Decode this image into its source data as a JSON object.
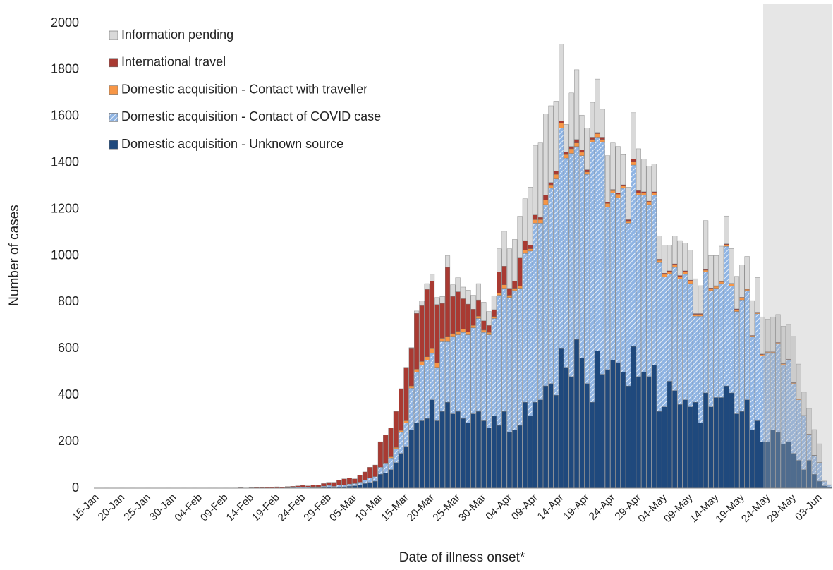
{
  "chart_data": {
    "type": "stacked-bar",
    "x_label": "Date of illness onset*",
    "y_label": "Number of cases",
    "categories": [
      "15-Jan",
      null,
      null,
      null,
      null,
      "20-Jan",
      null,
      null,
      null,
      null,
      "25-Jan",
      null,
      null,
      null,
      null,
      "30-Jan",
      null,
      null,
      null,
      null,
      "04-Feb",
      null,
      null,
      null,
      null,
      "09-Feb",
      null,
      null,
      null,
      null,
      "14-Feb",
      null,
      null,
      null,
      null,
      "19-Feb",
      null,
      null,
      null,
      null,
      "24-Feb",
      null,
      null,
      null,
      null,
      "29-Feb",
      null,
      null,
      null,
      null,
      "05-Mar",
      null,
      null,
      null,
      null,
      "10-Mar",
      null,
      null,
      null,
      null,
      "15-Mar",
      null,
      null,
      null,
      null,
      "20-Mar",
      null,
      null,
      null,
      null,
      "25-Mar",
      null,
      null,
      null,
      null,
      "30-Mar",
      null,
      null,
      null,
      null,
      "04-Apr",
      null,
      null,
      null,
      null,
      "09-Apr",
      null,
      null,
      null,
      null,
      "14-Apr",
      null,
      null,
      null,
      null,
      "19-Apr",
      null,
      null,
      null,
      null,
      "24-Apr",
      null,
      null,
      null,
      null,
      "29-Apr",
      null,
      null,
      null,
      null,
      "04-May",
      null,
      null,
      null,
      null,
      "09-May",
      null,
      null,
      null,
      null,
      "14-May",
      null,
      null,
      null,
      null,
      "19-May",
      null,
      null,
      null,
      null,
      "24-May",
      null,
      null,
      null,
      null,
      "29-May",
      null,
      null,
      null,
      null,
      "03-Jun",
      null,
      null
    ],
    "series": [
      {
        "name": "Domestic acquisition - Unknown source",
        "color": "#1f497d",
        "values": [
          0,
          0,
          0,
          0,
          0,
          0,
          0,
          0,
          0,
          0,
          0,
          0,
          0,
          0,
          0,
          0,
          0,
          0,
          0,
          0,
          0,
          0,
          0,
          0,
          0,
          0,
          0,
          0,
          0,
          0,
          0,
          0,
          0,
          0,
          0,
          0,
          0,
          0,
          1,
          1,
          1,
          1,
          2,
          2,
          3,
          4,
          3,
          5,
          6,
          8,
          10,
          14,
          20,
          25,
          30,
          60,
          65,
          80,
          110,
          150,
          180,
          250,
          280,
          290,
          300,
          380,
          290,
          330,
          370,
          320,
          330,
          300,
          280,
          320,
          330,
          290,
          260,
          310,
          270,
          330,
          240,
          250,
          270,
          370,
          310,
          370,
          380,
          440,
          450,
          400,
          600,
          520,
          480,
          640,
          560,
          450,
          370,
          590,
          490,
          510,
          550,
          540,
          500,
          440,
          610,
          480,
          500,
          480,
          530,
          330,
          350,
          460,
          420,
          360,
          380,
          350,
          370,
          280,
          410,
          350,
          390,
          390,
          440,
          410,
          320,
          330,
          380,
          250,
          290,
          200,
          200,
          250,
          240,
          190,
          200,
          150,
          120,
          80,
          120,
          60,
          30,
          10,
          5
        ]
      },
      {
        "name": "Domestic acquisition - Contact of COVID case",
        "color": "#8fb4e3",
        "hatch": true,
        "values": [
          0,
          0,
          0,
          0,
          0,
          0,
          0,
          0,
          0,
          0,
          0,
          0,
          0,
          0,
          0,
          0,
          0,
          0,
          0,
          0,
          0,
          0,
          0,
          0,
          0,
          0,
          0,
          0,
          0,
          0,
          0,
          0,
          0,
          1,
          1,
          1,
          1,
          2,
          2,
          3,
          3,
          3,
          4,
          4,
          6,
          8,
          5,
          8,
          8,
          10,
          10,
          12,
          15,
          20,
          20,
          30,
          40,
          50,
          60,
          90,
          100,
          180,
          220,
          240,
          250,
          200,
          230,
          300,
          260,
          330,
          330,
          370,
          380,
          370,
          400,
          380,
          400,
          420,
          560,
          530,
          580,
          600,
          590,
          640,
          710,
          770,
          760,
          780,
          840,
          930,
          950,
          900,
          960,
          830,
          870,
          900,
          1120,
          920,
          1000,
          700,
          720,
          710,
          790,
          700,
          780,
          780,
          760,
          740,
          730,
          640,
          560,
          460,
          530,
          540,
          540,
          530,
          370,
          460,
          520,
          500,
          470,
          490,
          600,
          460,
          440,
          480,
          470,
          400,
          460,
          370,
          380,
          330,
          380,
          340,
          350,
          300,
          260,
          230,
          110,
          80,
          80,
          20,
          10
        ]
      },
      {
        "name": "Domestic acquisition - Contact with traveller",
        "color": "#f79646",
        "values": [
          0,
          0,
          0,
          0,
          0,
          0,
          0,
          0,
          0,
          0,
          0,
          0,
          0,
          0,
          0,
          0,
          0,
          0,
          0,
          0,
          0,
          0,
          0,
          0,
          0,
          0,
          0,
          0,
          0,
          0,
          0,
          0,
          0,
          0,
          0,
          0,
          0,
          0,
          0,
          0,
          0,
          0,
          0,
          0,
          0,
          0,
          0,
          0,
          0,
          0,
          0,
          0,
          0,
          0,
          0,
          0,
          3,
          5,
          5,
          8,
          10,
          10,
          12,
          15,
          15,
          20,
          20,
          15,
          20,
          15,
          15,
          15,
          12,
          10,
          10,
          10,
          10,
          8,
          10,
          15,
          10,
          10,
          10,
          15,
          10,
          15,
          15,
          20,
          15,
          20,
          20,
          15,
          20,
          15,
          15,
          10,
          10,
          15,
          10,
          15,
          10,
          15,
          10,
          10,
          15,
          10,
          10,
          10,
          10,
          10,
          10,
          10,
          10,
          10,
          10,
          10,
          8,
          8,
          8,
          8,
          8,
          8,
          8,
          8,
          8,
          8,
          5,
          5,
          5,
          5,
          5,
          5,
          5,
          5,
          3,
          3,
          3,
          2,
          2,
          1,
          1,
          0,
          0
        ]
      },
      {
        "name": "International travel",
        "color": "#a93a32",
        "values": [
          0,
          0,
          1,
          0,
          0,
          1,
          0,
          1,
          0,
          0,
          1,
          0,
          0,
          0,
          1,
          0,
          0,
          1,
          0,
          1,
          0,
          0,
          1,
          1,
          0,
          1,
          0,
          1,
          2,
          1,
          2,
          3,
          3,
          3,
          4,
          5,
          3,
          5,
          5,
          6,
          8,
          6,
          8,
          7,
          11,
          13,
          17,
          22,
          26,
          27,
          20,
          29,
          35,
          45,
          50,
          110,
          120,
          125,
          155,
          180,
          230,
          160,
          240,
          240,
          290,
          290,
          250,
          150,
          300,
          160,
          170,
          130,
          120,
          70,
          70,
          40,
          30,
          30,
          90,
          80,
          30,
          30,
          120,
          40,
          15,
          20,
          10,
          20,
          10,
          15,
          10,
          10,
          10,
          15,
          10,
          10,
          10,
          5,
          10,
          5,
          5,
          5,
          5,
          5,
          10,
          10,
          5,
          5,
          5,
          5,
          5,
          5,
          5,
          5,
          5,
          5,
          3,
          3,
          3,
          3,
          3,
          3,
          3,
          3,
          3,
          3,
          2,
          2,
          2,
          2,
          2,
          2,
          2,
          2,
          2,
          2,
          1,
          1,
          1,
          1,
          0,
          0,
          0
        ]
      },
      {
        "name": "Information pending",
        "color": "#d9d9d9",
        "values": [
          0,
          0,
          0,
          0,
          0,
          0,
          0,
          0,
          0,
          0,
          0,
          0,
          0,
          0,
          0,
          0,
          0,
          0,
          0,
          0,
          0,
          0,
          0,
          0,
          0,
          0,
          0,
          0,
          0,
          0,
          0,
          0,
          0,
          0,
          0,
          0,
          0,
          0,
          0,
          0,
          0,
          0,
          0,
          0,
          0,
          0,
          0,
          0,
          0,
          0,
          0,
          0,
          0,
          0,
          0,
          0,
          0,
          0,
          0,
          0,
          0,
          5,
          10,
          20,
          25,
          30,
          30,
          30,
          50,
          50,
          60,
          50,
          60,
          60,
          70,
          80,
          60,
          60,
          100,
          150,
          170,
          180,
          180,
          180,
          250,
          300,
          320,
          350,
          330,
          300,
          330,
          120,
          230,
          300,
          150,
          180,
          150,
          230,
          120,
          200,
          200,
          200,
          130,
          140,
          200,
          180,
          140,
          150,
          120,
          100,
          120,
          110,
          120,
          150,
          120,
          130,
          150,
          120,
          210,
          140,
          130,
          150,
          120,
          150,
          140,
          140,
          140,
          150,
          150,
          160,
          140,
          150,
          120,
          160,
          150,
          200,
          150,
          100,
          110,
          110,
          80,
          5,
          0
        ]
      }
    ],
    "ylim": [
      0,
      2000
    ],
    "yticks": [
      0,
      200,
      400,
      600,
      800,
      1000,
      1200,
      1400,
      1600,
      1800,
      2000
    ],
    "grid": false,
    "legend": "top-left"
  }
}
